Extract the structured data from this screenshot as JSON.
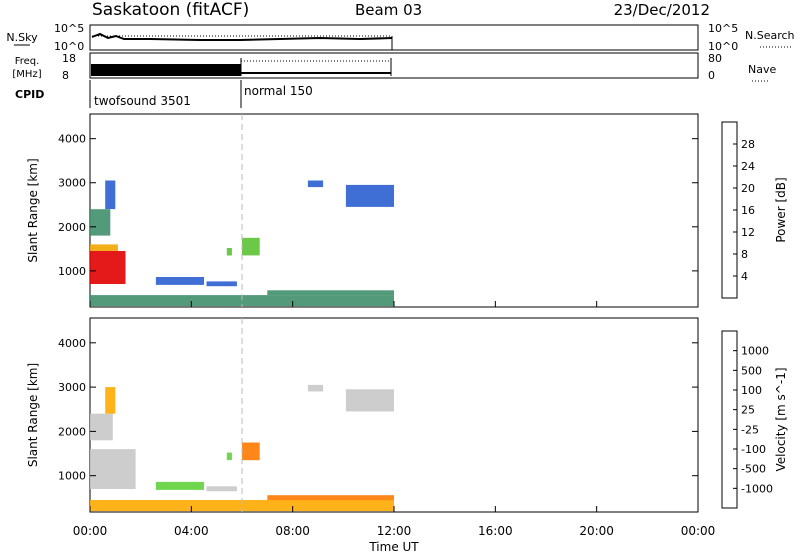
{
  "header": {
    "station": "Saskatoon (fitACF)",
    "beam": "Beam 03",
    "date": "23/Dec/2012"
  },
  "status_panels": {
    "nsky_label": "N.Sky",
    "nsearch_label": "N.Search",
    "freq_label_top": "Freq.",
    "freq_label_unit": "[MHz]",
    "nave_label": "Nave",
    "cpid_label": "CPID",
    "nsky_ticks": [
      "10^5",
      "10^0"
    ],
    "nsearch_ticks": [
      "10^5",
      "10^0"
    ],
    "freq_ticks": [
      "18",
      "8"
    ],
    "nave_ticks": [
      "80",
      "0"
    ],
    "cpid_segments": [
      {
        "label": "twofsound 3501",
        "start_hour": 0,
        "end_hour": 6
      },
      {
        "label": "normal 150",
        "start_hour": 6,
        "end_hour": 12
      }
    ]
  },
  "axes": {
    "xlabel": "Time UT",
    "x_tick_labels": [
      "00:00",
      "04:00",
      "08:00",
      "12:00",
      "16:00",
      "20:00",
      "00:00"
    ],
    "x_tick_hours": [
      0,
      4,
      8,
      12,
      16,
      20,
      24
    ],
    "ylabel": "Slant Range [km]",
    "y_tick_labels": [
      "1000",
      "2000",
      "3000",
      "4000"
    ],
    "y_tick_values": [
      1000,
      2000,
      3000,
      4000
    ],
    "ylim": [
      180,
      4560
    ],
    "xlim": [
      0,
      24
    ]
  },
  "colorbars": {
    "power": {
      "label": "Power [dB]",
      "tick_labels": [
        "4",
        "8",
        "12",
        "16",
        "20",
        "24",
        "28"
      ],
      "colors": [
        "#0a0aff",
        "#2a5fd0",
        "#3f8f6a",
        "#5cc233",
        "#f2a600",
        "#ff7a00",
        "#ff3000",
        "#e10000"
      ]
    },
    "velocity": {
      "label": "Velocity [m s^-1]",
      "tick_labels": [
        "1000",
        "500",
        "100",
        "25",
        "-25",
        "-100",
        "-500",
        "-1000"
      ],
      "colors": [
        "#1d2bd6",
        "#2c60c2",
        "#3aa06b",
        "#5fd23a",
        "#c8c8c8",
        "#ffaa00",
        "#ff7a00",
        "#ff3000",
        "#e00000"
      ]
    }
  },
  "chart_data": [
    {
      "type": "heatmap",
      "panel": "power",
      "xlabel": "Time UT",
      "ylabel": "Slant Range [km]",
      "ylim": [
        180,
        4560
      ],
      "colorbar_label": "Power [dB]",
      "value_range": [
        0,
        30
      ],
      "regions": [
        {
          "x0": 0.0,
          "x1": 1.4,
          "y0": 700,
          "y1": 1450,
          "value": 29
        },
        {
          "x0": 0.0,
          "x1": 1.1,
          "y0": 1450,
          "y1": 1600,
          "value": 15
        },
        {
          "x0": 0.0,
          "x1": 0.8,
          "y0": 1800,
          "y1": 2400,
          "value": 11
        },
        {
          "x0": 0.6,
          "x1": 1.0,
          "y0": 2400,
          "y1": 3050,
          "value": 6
        },
        {
          "x0": 2.6,
          "x1": 4.5,
          "y0": 680,
          "y1": 860,
          "value": 5
        },
        {
          "x0": 4.6,
          "x1": 5.8,
          "y0": 650,
          "y1": 760,
          "value": 5
        },
        {
          "x0": 5.4,
          "x1": 5.6,
          "y0": 1350,
          "y1": 1520,
          "value": 13
        },
        {
          "x0": 6.0,
          "x1": 6.7,
          "y0": 1350,
          "y1": 1750,
          "value": 14
        },
        {
          "x0": 10.1,
          "x1": 12.0,
          "y0": 2450,
          "y1": 2950,
          "value": 6
        },
        {
          "x0": 8.6,
          "x1": 9.2,
          "y0": 2900,
          "y1": 3050,
          "value": 5
        },
        {
          "x0": 0.0,
          "x1": 12.0,
          "y0": 200,
          "y1": 450,
          "value": 9
        },
        {
          "x0": 7.0,
          "x1": 12.0,
          "y0": 450,
          "y1": 560,
          "value": 11
        }
      ]
    },
    {
      "type": "heatmap",
      "panel": "velocity",
      "xlabel": "Time UT",
      "ylabel": "Slant Range [km]",
      "ylim": [
        180,
        4560
      ],
      "colorbar_label": "Velocity [m s^-1]",
      "value_range": [
        -1000,
        1000
      ],
      "regions": [
        {
          "x0": 0.0,
          "x1": 1.8,
          "y0": 700,
          "y1": 1600,
          "value": 0
        },
        {
          "x0": 0.0,
          "x1": 0.9,
          "y0": 1800,
          "y1": 2400,
          "value": 0
        },
        {
          "x0": 0.6,
          "x1": 1.0,
          "y0": 2400,
          "y1": 3000,
          "value": -30
        },
        {
          "x0": 2.6,
          "x1": 4.5,
          "y0": 680,
          "y1": 860,
          "value": 60
        },
        {
          "x0": 4.6,
          "x1": 5.8,
          "y0": 650,
          "y1": 760,
          "value": 20
        },
        {
          "x0": 5.4,
          "x1": 5.6,
          "y0": 1350,
          "y1": 1520,
          "value": 60
        },
        {
          "x0": 6.0,
          "x1": 6.7,
          "y0": 1350,
          "y1": 1750,
          "value": -450
        },
        {
          "x0": 10.1,
          "x1": 12.0,
          "y0": 2450,
          "y1": 2950,
          "value": 0
        },
        {
          "x0": 8.6,
          "x1": 9.2,
          "y0": 2900,
          "y1": 3050,
          "value": 0
        },
        {
          "x0": 0.0,
          "x1": 12.0,
          "y0": 200,
          "y1": 450,
          "value": -60
        },
        {
          "x0": 7.0,
          "x1": 12.0,
          "y0": 450,
          "y1": 560,
          "value": -110
        }
      ]
    }
  ]
}
